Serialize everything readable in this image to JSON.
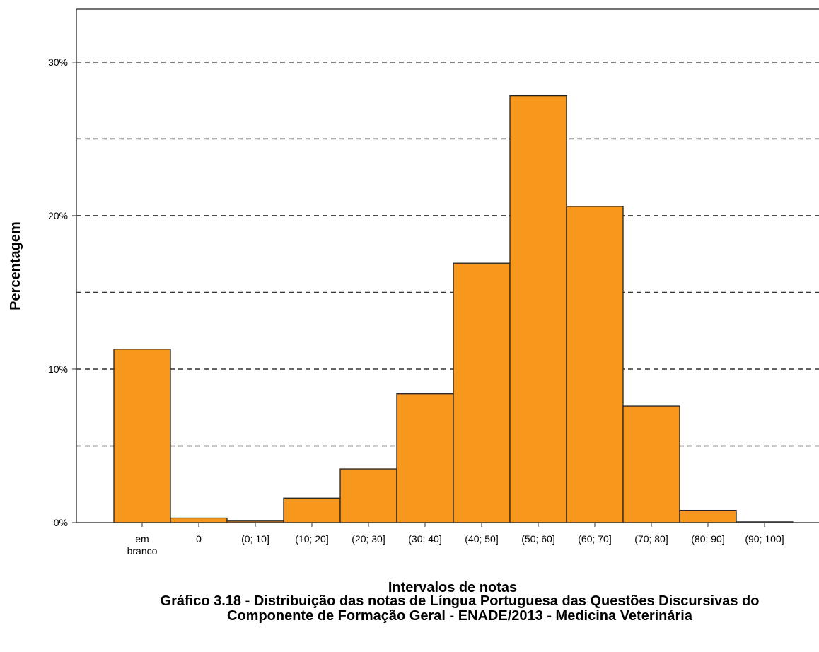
{
  "chart_data": {
    "type": "bar",
    "title": "Gráfico 3.18 - Distribuição das notas de Língua Portuguesa das Questões Discursivas do Componente de Formação Geral - ENADE/2013 - Medicina Veterinária",
    "x_label": "Intervalos de notas",
    "y_label": "Percentagem",
    "categories": [
      "em branco",
      "0",
      "(0; 10]",
      "(10; 20]",
      "(20; 30]",
      "(30; 40]",
      "(40; 50]",
      "(50; 60]",
      "(60; 70]",
      "(70; 80]",
      "(80; 90]",
      "(90; 100]"
    ],
    "values": [
      11.3,
      0.3,
      0.1,
      1.6,
      3.5,
      8.4,
      16.9,
      27.8,
      20.6,
      7.6,
      0.8,
      0.05
    ],
    "color": "#f7981d",
    "ylim": [
      0,
      33.45
    ],
    "yticks": [
      {
        "value": 0,
        "label": "0%"
      },
      {
        "value": 10,
        "label": "10%"
      },
      {
        "value": 20,
        "label": "20%"
      },
      {
        "value": 30,
        "label": "30%"
      }
    ],
    "minor_grid": [
      5,
      15,
      25
    ],
    "grid": true
  }
}
